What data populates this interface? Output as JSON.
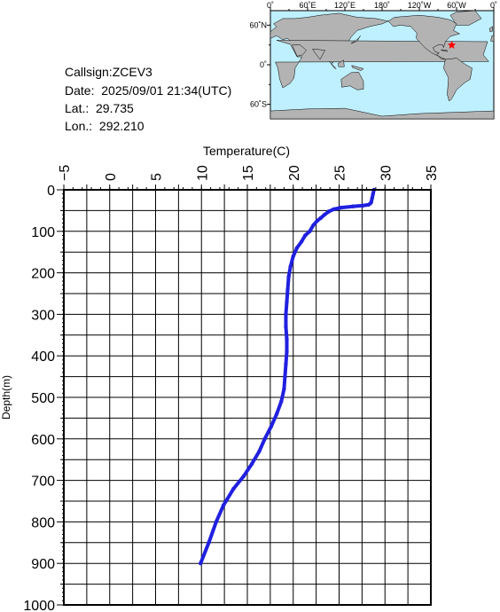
{
  "info": {
    "callsign": "Callsign:ZCEV3",
    "date": "Date:  2025/09/01 21:34(UTC)",
    "lat": "Lat.:  29.735",
    "lon": "Lon.:  292.210"
  },
  "map": {
    "lon_labels": [
      "0˚",
      "60˚E",
      "120˚E",
      "180˚",
      "120˚W",
      "60˚W",
      "0˚"
    ],
    "lat_labels": [
      "60˚N",
      "0˚",
      "60˚S"
    ],
    "station": {
      "lat": 29.735,
      "lon": 292.21
    },
    "colors": {
      "ocean": "#bff0ff",
      "land": "#b3b3b3",
      "marker": "#ff0000"
    }
  },
  "chart_data": {
    "type": "line",
    "title": "",
    "xlabel": "Temperature(C)",
    "ylabel": "Depth(m)",
    "xlim": [
      -5,
      35
    ],
    "ylim": [
      0,
      1000
    ],
    "x_axis_position": "top",
    "y_axis_inverted": true,
    "grid": true,
    "x_ticks": [
      "-5",
      "0",
      "5",
      "10",
      "15",
      "20",
      "25",
      "30",
      "35"
    ],
    "y_ticks": [
      "0",
      "100",
      "200",
      "300",
      "400",
      "500",
      "600",
      "700",
      "800",
      "900",
      "1000"
    ],
    "color": "#2020e0",
    "series": [
      {
        "x": [
          28.8,
          28.7,
          28.6,
          28.5,
          28.4,
          28.2,
          27.6,
          26.5,
          25.2,
          24.4,
          23.9,
          23.4,
          23.0,
          22.6,
          22.2,
          21.8,
          21.3,
          20.9,
          20.4,
          20.0,
          19.7,
          19.5,
          19.4,
          19.3,
          19.2,
          19.2,
          19.3,
          19.3,
          19.2,
          19.1,
          19.0,
          18.7,
          18.2,
          17.6,
          16.9,
          16.3,
          15.5,
          14.6,
          13.5,
          12.4,
          11.6,
          10.8,
          9.9
        ],
        "y": [
          0,
          10,
          20,
          30,
          33,
          36,
          38,
          40,
          43,
          47,
          52,
          60,
          68,
          75,
          85,
          100,
          110,
          125,
          140,
          160,
          185,
          210,
          240,
          270,
          300,
          330,
          360,
          390,
          420,
          450,
          480,
          510,
          540,
          570,
          600,
          630,
          660,
          690,
          720,
          760,
          800,
          850,
          900
        ]
      }
    ]
  }
}
